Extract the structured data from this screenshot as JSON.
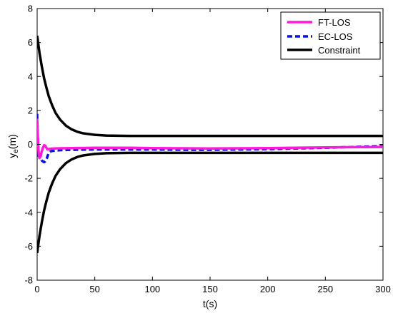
{
  "chart_data": {
    "type": "line",
    "title": "",
    "xlabel": "t(s)",
    "ylabel_main": "y",
    "ylabel_sub": "e",
    "ylabel_unit": "(m)",
    "xlim": [
      0,
      300
    ],
    "ylim": [
      -8,
      8
    ],
    "xticks": [
      0,
      50,
      100,
      150,
      200,
      250,
      300
    ],
    "yticks": [
      -8,
      -6,
      -4,
      -2,
      0,
      2,
      4,
      6,
      8
    ],
    "grid": false,
    "legend_position": "top-right",
    "series": [
      {
        "name": "FT-LOS",
        "color": "#ff1adb",
        "dash": "solid",
        "x": [
          0,
          0.5,
          1,
          1.5,
          2,
          3,
          4,
          5,
          6,
          7,
          8,
          9,
          10,
          12,
          15,
          20,
          30,
          50,
          80,
          100,
          150,
          200,
          250,
          300
        ],
        "y": [
          1.5,
          0.6,
          -0.2,
          -0.6,
          -0.8,
          -0.7,
          -0.4,
          -0.2,
          -0.05,
          -0.08,
          -0.2,
          -0.3,
          -0.28,
          -0.25,
          -0.24,
          -0.23,
          -0.22,
          -0.2,
          -0.2,
          -0.22,
          -0.24,
          -0.22,
          -0.18,
          -0.15
        ]
      },
      {
        "name": "EC-LOS",
        "color": "#0a14d8",
        "dash": "dashed",
        "x": [
          0,
          0.5,
          1,
          1.5,
          2,
          3,
          4,
          5,
          6,
          7,
          8,
          9,
          10,
          12,
          14,
          16,
          20,
          25,
          30,
          40,
          50,
          70,
          100,
          130,
          150,
          200,
          250,
          300
        ],
        "y": [
          1.8,
          0.4,
          -0.5,
          -0.7,
          -0.75,
          -0.85,
          -0.95,
          -1.0,
          -1.05,
          -1.0,
          -0.9,
          -0.7,
          -0.5,
          -0.4,
          -0.38,
          -0.36,
          -0.34,
          -0.33,
          -0.32,
          -0.31,
          -0.3,
          -0.3,
          -0.3,
          -0.32,
          -0.32,
          -0.28,
          -0.2,
          -0.1
        ]
      },
      {
        "name": "Constraint",
        "color": "#000000",
        "dash": "solid",
        "mirror": true,
        "x": [
          0,
          2,
          4,
          6,
          8,
          10,
          13,
          16,
          20,
          25,
          30,
          35,
          40,
          50,
          60,
          70,
          80,
          100,
          150,
          200,
          250,
          300
        ],
        "y": [
          6.4,
          5.4,
          4.6,
          3.9,
          3.35,
          2.85,
          2.3,
          1.85,
          1.45,
          1.1,
          0.88,
          0.74,
          0.65,
          0.56,
          0.52,
          0.51,
          0.5,
          0.5,
          0.5,
          0.5,
          0.5,
          0.5
        ]
      }
    ]
  }
}
